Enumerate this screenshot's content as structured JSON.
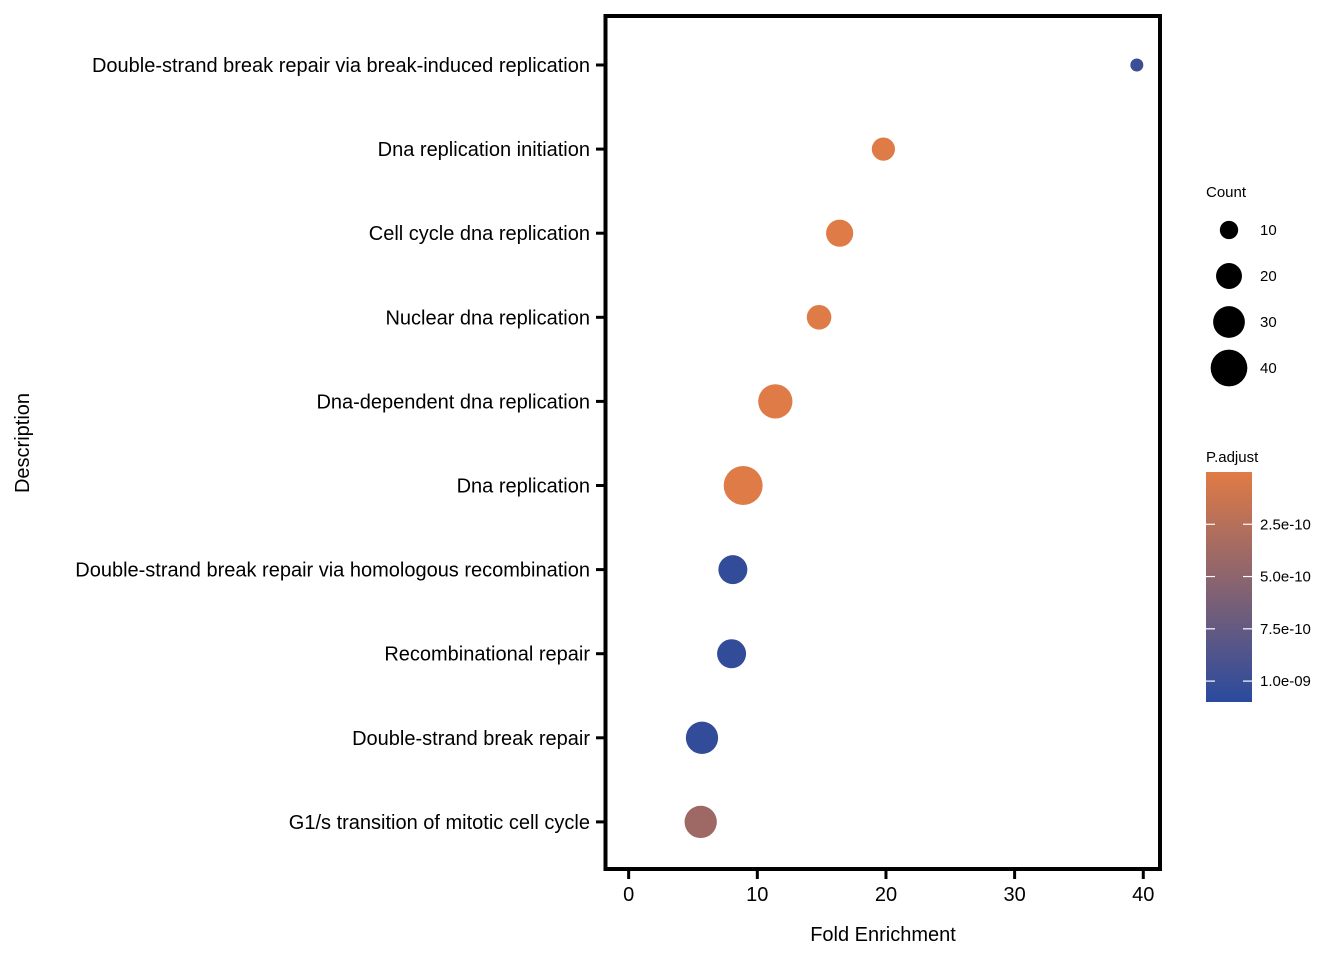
{
  "chart_data": {
    "type": "scatter",
    "xlabel": "Fold Enrichment",
    "ylabel": "Description",
    "xlim": [
      -1.8,
      41.3
    ],
    "x_ticks": [
      "0",
      "10",
      "20",
      "30",
      "40"
    ],
    "categories": [
      "Double-strand break repair via break-induced replication",
      "Dna replication initiation",
      "Cell cycle dna replication",
      "Nuclear dna replication",
      "Dna-dependent dna replication",
      "Dna replication",
      "Double-strand break repair via homologous recombination",
      "Recombinational repair",
      "Double-strand break repair",
      "G1/s transition of mitotic cell cycle"
    ],
    "points": [
      {
        "description": "Double-strand break repair via break-induced replication",
        "fold_enrichment": 39.5,
        "count": 5,
        "p_adjust": 1e-09
      },
      {
        "description": "Dna replication initiation",
        "fold_enrichment": 19.8,
        "count": 16,
        "p_adjust": 1e-11
      },
      {
        "description": "Cell cycle dna replication",
        "fold_enrichment": 16.4,
        "count": 22,
        "p_adjust": 1e-11
      },
      {
        "description": "Nuclear dna replication",
        "fold_enrichment": 14.8,
        "count": 18,
        "p_adjust": 1e-11
      },
      {
        "description": "Dna-dependent dna replication",
        "fold_enrichment": 11.4,
        "count": 35,
        "p_adjust": 1e-11
      },
      {
        "description": "Dna replication",
        "fold_enrichment": 8.9,
        "count": 45,
        "p_adjust": 1e-11
      },
      {
        "description": "Double-strand break repair via homologous recombination",
        "fold_enrichment": 8.1,
        "count": 25,
        "p_adjust": 1.05e-09
      },
      {
        "description": "Recombinational repair",
        "fold_enrichment": 8.0,
        "count": 25,
        "p_adjust": 1.05e-09
      },
      {
        "description": "Double-strand break repair",
        "fold_enrichment": 5.7,
        "count": 31,
        "p_adjust": 1.05e-09
      },
      {
        "description": "G1/s transition of mitotic cell cycle",
        "fold_enrichment": 5.6,
        "count": 31,
        "p_adjust": 4e-10
      }
    ],
    "size_legend": {
      "title": "Count",
      "breaks": [
        10,
        20,
        30,
        40
      ],
      "labels": [
        "10",
        "20",
        "30",
        "40"
      ]
    },
    "color_legend": {
      "title": "P.adjust",
      "low_color": "#E07B45",
      "high_color": "#2A4A9E",
      "range": [
        0,
        1.1e-09
      ],
      "breaks": [
        2.5e-10,
        5e-10,
        7.5e-10,
        1e-09
      ],
      "labels": [
        "2.5e-10",
        "5.0e-10",
        "7.5e-10",
        "1.0e-09"
      ]
    },
    "grid": false,
    "legend_position": "right"
  }
}
